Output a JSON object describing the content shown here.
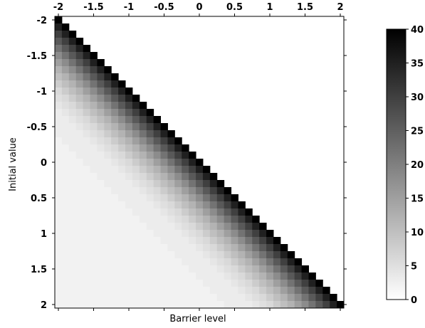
{
  "chart_data": {
    "type": "heatmap",
    "title": "",
    "xlabel": "Barrier level",
    "ylabel": "Initial value",
    "x_range": [
      -2,
      2
    ],
    "y_range": [
      -2,
      2
    ],
    "y_inverted": true,
    "x_axis_position": "top",
    "x_tick_labels": [
      "-2",
      "-1.5",
      "-1",
      "-0.5",
      "0",
      "0.5",
      "1",
      "1.5",
      "2"
    ],
    "y_tick_labels": [
      "-2",
      "-1.5",
      "-1",
      "-0.5",
      "0",
      "0.5",
      "1",
      "1.5",
      "2"
    ],
    "grid": "41x41 cells, step 0.1",
    "colormap": "gray_r",
    "color_range": [
      0,
      40
    ],
    "colorbar_ticks": [
      "0",
      "5",
      "10",
      "15",
      "20",
      "25",
      "30",
      "35",
      "40"
    ],
    "colorbar_position": "right",
    "background_value": 2,
    "pattern": "values are 40 on the diagonal where barrier level equals initial value and decay to the background as the barrier moves below the initial value; cells with barrier level above initial value are blank",
    "band_values_by_offset": [
      40,
      35,
      30,
      26,
      22,
      18,
      15,
      12,
      10,
      8,
      6,
      5,
      4,
      3
    ],
    "colors": {
      "min": "#ffffff",
      "max": "#000000"
    }
  }
}
